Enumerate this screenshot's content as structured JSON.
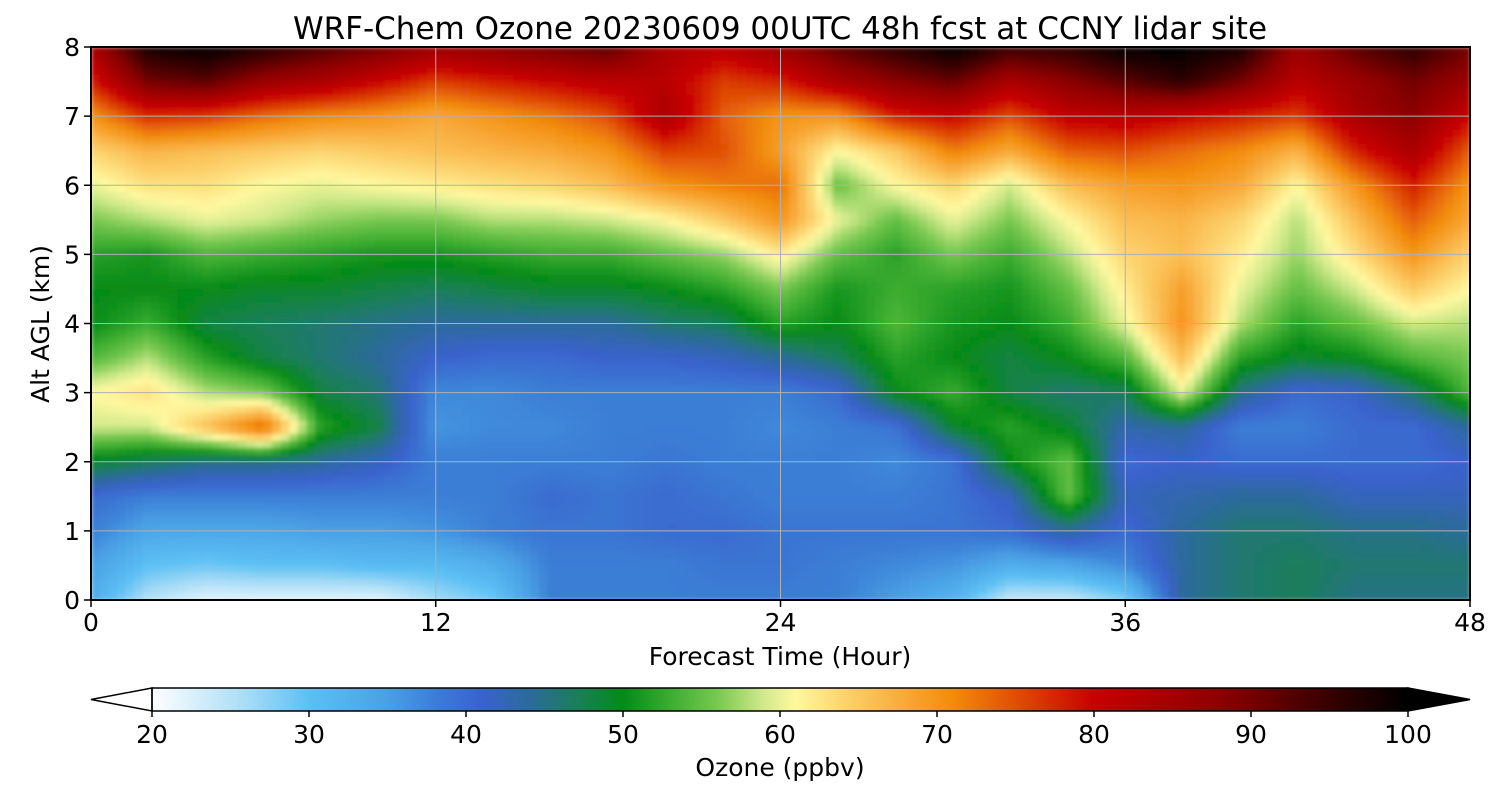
{
  "chart_data": {
    "type": "heatmap",
    "title": "WRF-Chem Ozone  20230609 00UTC 48h fcst at CCNY lidar site",
    "xlabel": "Forecast Time (Hour)",
    "ylabel": "Alt AGL (km)",
    "xlim": [
      0,
      48
    ],
    "ylim": [
      0,
      8
    ],
    "x_ticks": [
      0,
      12,
      24,
      36,
      48
    ],
    "y_ticks": [
      0,
      1,
      2,
      3,
      4,
      5,
      6,
      7,
      8
    ],
    "grid": true,
    "colorbar": {
      "label": "Ozone  (ppbv)",
      "orientation": "horizontal",
      "range": [
        20,
        100
      ],
      "ticks": [
        20,
        30,
        40,
        50,
        60,
        70,
        80,
        90,
        100
      ],
      "extend": "both",
      "colormap_stops": [
        {
          "value": 20,
          "color": "#ffffff"
        },
        {
          "value": 26,
          "color": "#a8dcf6"
        },
        {
          "value": 30,
          "color": "#5cc0f4"
        },
        {
          "value": 35,
          "color": "#4aa0e4"
        },
        {
          "value": 38,
          "color": "#3b7ed6"
        },
        {
          "value": 41,
          "color": "#3a62cc"
        },
        {
          "value": 44,
          "color": "#2c6a9c"
        },
        {
          "value": 47,
          "color": "#1b7e5a"
        },
        {
          "value": 50,
          "color": "#058a18"
        },
        {
          "value": 53,
          "color": "#3cac30"
        },
        {
          "value": 56,
          "color": "#78c850"
        },
        {
          "value": 59,
          "color": "#d2ea8c"
        },
        {
          "value": 61,
          "color": "#fff8a0"
        },
        {
          "value": 64,
          "color": "#fcd470"
        },
        {
          "value": 68,
          "color": "#f8a838"
        },
        {
          "value": 71,
          "color": "#f28c0c"
        },
        {
          "value": 75,
          "color": "#e04e06"
        },
        {
          "value": 80,
          "color": "#c80000"
        },
        {
          "value": 88,
          "color": "#8c0000"
        },
        {
          "value": 94,
          "color": "#420000"
        },
        {
          "value": 100,
          "color": "#000000"
        }
      ]
    },
    "x_hours": [
      0,
      2,
      4,
      6,
      8,
      10,
      12,
      14,
      16,
      18,
      20,
      22,
      24,
      26,
      28,
      30,
      32,
      34,
      36,
      38,
      40,
      42,
      44,
      46,
      48
    ],
    "y_km": [
      0,
      0.5,
      1,
      1.5,
      2,
      2.5,
      3,
      3.5,
      4,
      4.5,
      5,
      5.5,
      6,
      6.5,
      7,
      7.5,
      8
    ],
    "ozone_ppbv": [
      [
        33,
        25,
        22,
        22,
        22,
        22,
        26,
        29,
        38,
        38,
        38,
        38,
        38,
        38,
        35,
        32,
        24,
        24,
        28,
        44,
        46,
        47,
        45,
        45,
        45
      ],
      [
        35,
        30,
        29,
        30,
        30,
        31,
        31,
        33,
        38,
        38,
        38,
        39,
        39,
        38,
        37,
        36,
        33,
        34,
        37,
        44,
        46,
        47,
        46,
        46,
        46
      ],
      [
        38,
        34,
        34,
        34,
        35,
        35,
        36,
        38,
        39,
        39,
        40,
        40,
        39,
        39,
        39,
        39,
        40,
        44,
        40,
        44,
        46,
        46,
        45,
        45,
        44
      ],
      [
        40,
        38,
        38,
        38,
        38,
        38,
        38,
        38,
        40,
        39,
        40,
        39,
        38,
        38,
        38,
        39,
        42,
        55,
        42,
        43,
        44,
        44,
        42,
        42,
        42
      ],
      [
        49,
        47,
        45,
        45,
        44,
        42,
        38,
        38,
        38,
        38,
        39,
        38,
        38,
        38,
        37,
        39,
        50,
        55,
        40,
        41,
        40,
        40,
        40,
        40,
        41
      ],
      [
        59,
        59,
        66,
        74,
        52,
        48,
        36,
        37,
        37,
        38,
        38,
        38,
        37,
        38,
        39,
        49,
        52,
        49,
        43,
        44,
        38,
        38,
        40,
        40,
        44
      ],
      [
        61,
        63,
        58,
        56,
        48,
        46,
        37,
        37,
        38,
        38,
        38,
        38,
        38,
        40,
        50,
        53,
        48,
        46,
        47,
        60,
        45,
        40,
        41,
        46,
        54
      ],
      [
        54,
        58,
        52,
        48,
        46,
        44,
        41,
        40,
        40,
        41,
        41,
        42,
        44,
        47,
        52,
        50,
        48,
        50,
        54,
        66,
        52,
        49,
        50,
        54,
        56
      ],
      [
        50,
        53,
        48,
        47,
        46,
        45,
        44,
        44,
        44,
        44,
        46,
        47,
        52,
        50,
        54,
        51,
        50,
        53,
        60,
        70,
        58,
        52,
        55,
        59,
        58
      ],
      [
        50,
        50,
        50,
        49,
        49,
        48,
        47,
        48,
        49,
        49,
        50,
        52,
        56,
        51,
        53,
        52,
        51,
        55,
        62,
        69,
        60,
        55,
        59,
        65,
        61
      ],
      [
        52,
        51,
        54,
        53,
        52,
        51,
        51,
        52,
        53,
        53,
        55,
        57,
        62,
        55,
        52,
        56,
        53,
        58,
        64,
        66,
        62,
        57,
        63,
        70,
        64
      ],
      [
        56,
        58,
        60,
        59,
        57,
        56,
        56,
        58,
        58,
        59,
        61,
        65,
        70,
        60,
        55,
        60,
        56,
        61,
        66,
        67,
        64,
        58,
        66,
        74,
        68
      ],
      [
        60,
        63,
        63,
        61,
        60,
        61,
        62,
        63,
        64,
        66,
        70,
        72,
        73,
        55,
        61,
        64,
        59,
        66,
        69,
        70,
        68,
        61,
        70,
        78,
        70
      ],
      [
        64,
        67,
        66,
        65,
        64,
        65,
        66,
        67,
        68,
        70,
        76,
        75,
        69,
        61,
        65,
        72,
        68,
        74,
        75,
        73,
        71,
        67,
        78,
        84,
        74
      ],
      [
        70,
        77,
        76,
        73,
        71,
        70,
        68,
        70,
        72,
        75,
        84,
        74,
        70,
        70,
        78,
        80,
        75,
        81,
        82,
        80,
        78,
        76,
        84,
        88,
        80
      ],
      [
        78,
        90,
        92,
        86,
        84,
        80,
        76,
        78,
        80,
        82,
        82,
        76,
        78,
        84,
        88,
        91,
        84,
        88,
        92,
        96,
        90,
        82,
        86,
        90,
        86
      ],
      [
        84,
        98,
        100,
        97,
        93,
        90,
        86,
        88,
        90,
        92,
        84,
        82,
        86,
        92,
        96,
        100,
        95,
        96,
        100,
        100,
        98,
        86,
        92,
        96,
        90
      ]
    ]
  }
}
